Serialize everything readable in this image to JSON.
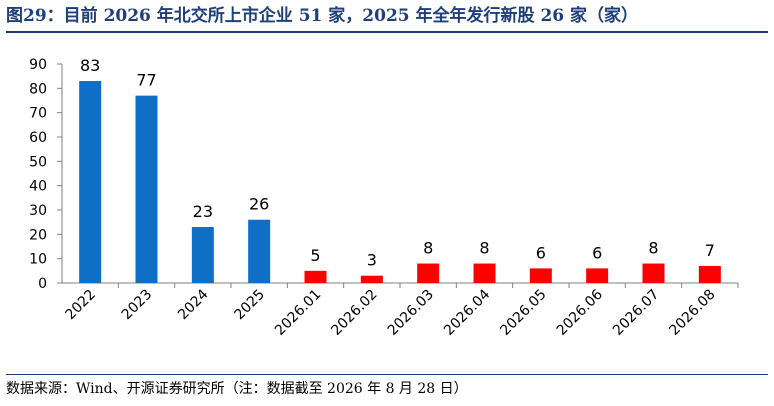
{
  "title": "图29：目前 2026 年北交所上市企业 51 家，2025 年全年发行新股 26 家（家）",
  "source": "数据来源：Wind、开源证券研究所（注：数据截至 2026 年 8 月 28 日）",
  "colors": {
    "annual": "#0f6fc6",
    "monthly": "#ff0000",
    "title": "#1f3f7a",
    "axis": "#808080"
  },
  "chart_data": {
    "type": "bar",
    "categories": [
      "2022",
      "2023",
      "2024",
      "2025",
      "2026.01",
      "2026.02",
      "2026.03",
      "2026.04",
      "2026.05",
      "2026.06",
      "2026.07",
      "2026.08"
    ],
    "values": [
      83,
      77,
      23,
      26,
      5,
      3,
      8,
      8,
      6,
      6,
      8,
      7
    ],
    "bar_colors": [
      "#0f6fc6",
      "#0f6fc6",
      "#0f6fc6",
      "#0f6fc6",
      "#ff0000",
      "#ff0000",
      "#ff0000",
      "#ff0000",
      "#ff0000",
      "#ff0000",
      "#ff0000",
      "#ff0000"
    ],
    "yticks": [
      0,
      10,
      20,
      30,
      40,
      50,
      60,
      70,
      80,
      90
    ],
    "ylim": [
      0,
      90
    ],
    "data_labels": true,
    "grid": false,
    "legend": "none",
    "xlabel": "",
    "ylabel": ""
  }
}
